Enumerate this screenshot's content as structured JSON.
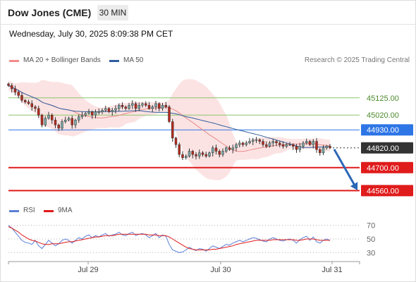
{
  "header": {
    "title": "Dow Jones (CME)",
    "timeframe": "30 MIN",
    "datetime": "Wednesday, July 30, 2025 8:09:38 PM CET"
  },
  "legend": {
    "ma20_label": "MA 20 + Bollinger Bands",
    "ma50_label": "MA 50",
    "copyright": "Research © 2025 Trading Central"
  },
  "rsi_legend": {
    "rsi_label": "RSI",
    "ma9_label": "9MA"
  },
  "colors": {
    "bollinger": "#f4a6a6",
    "ma50": "#2f5d9e",
    "resistance": "#8cc66c",
    "pivot": "#2e75e6",
    "support": "#e01b1b",
    "last_price": "#333333",
    "candle_up": "#79a9a6",
    "candle_down": "#b62b1e"
  },
  "chart_data": [
    {
      "type": "candlestick",
      "title": "Dow Jones (CME) 30 MIN",
      "xticks": [
        "Jul 29",
        "Jul 30",
        "Jul 31"
      ],
      "ylim": [
        44510,
        45240
      ],
      "price_labels": [
        {
          "label": "45125.00",
          "value": 45125,
          "kind": "resistance"
        },
        {
          "label": "45020.00",
          "value": 45020,
          "kind": "resistance"
        },
        {
          "label": "44930.00",
          "value": 44930,
          "kind": "pivot"
        },
        {
          "label": "44820.00",
          "value": 44820,
          "kind": "last"
        },
        {
          "label": "44700.00",
          "value": 44700,
          "kind": "support"
        },
        {
          "label": "44560.00",
          "value": 44560,
          "kind": "support"
        }
      ],
      "closes": [
        45200,
        45180,
        45160,
        45140,
        45110,
        45100,
        45090,
        45070,
        45060,
        45020,
        44960,
        45000,
        45020,
        44990,
        44960,
        44940,
        44980,
        44990,
        45000,
        44960,
        44990,
        45010,
        45020,
        45030,
        45040,
        45020,
        45040,
        45040,
        45050,
        45060,
        45040,
        45050,
        45060,
        45080,
        45070,
        45060,
        45080,
        45090,
        45060,
        45080,
        45090,
        45080,
        45060,
        45070,
        45090,
        45060,
        45080,
        45070,
        44980,
        44880,
        44840,
        44780,
        44760,
        44770,
        44800,
        44780,
        44770,
        44790,
        44780,
        44770,
        44790,
        44820,
        44800,
        44780,
        44800,
        44820,
        44810,
        44820,
        44840,
        44850,
        44840,
        44850,
        44860,
        44870,
        44870,
        44860,
        44840,
        44830,
        44850,
        44860,
        44850,
        44840,
        44830,
        44840,
        44840,
        44830,
        44810,
        44830,
        44850,
        44860,
        44840,
        44860,
        44810,
        44790,
        44820,
        44830,
        44820
      ],
      "forecast": {
        "from": 44820,
        "to": 44560
      },
      "series": [
        {
          "name": "MA 20 + Bollinger Bands"
        },
        {
          "name": "MA 50"
        }
      ]
    },
    {
      "type": "line",
      "ylim": [
        20,
        80
      ],
      "yticks": [
        "70",
        "50",
        "30"
      ],
      "series": [
        {
          "name": "RSI",
          "values": [
            70,
            66,
            60,
            54,
            48,
            45,
            44,
            42,
            48,
            40,
            36,
            42,
            48,
            44,
            40,
            43,
            48,
            50,
            48,
            44,
            48,
            52,
            50,
            54,
            56,
            52,
            55,
            53,
            56,
            58,
            54,
            56,
            57,
            60,
            56,
            55,
            58,
            60,
            55,
            57,
            58,
            56,
            52,
            55,
            58,
            52,
            56,
            54,
            42,
            34,
            32,
            30,
            31,
            34,
            38,
            35,
            33,
            36,
            35,
            32,
            36,
            40,
            38,
            36,
            39,
            42,
            41,
            44,
            46,
            48,
            46,
            48,
            50,
            52,
            51,
            49,
            47,
            46,
            50,
            52,
            50,
            48,
            47,
            49,
            50,
            48,
            44,
            49,
            52,
            54,
            48,
            53,
            46,
            44,
            48,
            50,
            48
          ]
        },
        {
          "name": "9MA",
          "values": [
            68,
            66,
            63,
            60,
            56,
            53,
            50,
            48,
            47,
            45,
            43,
            42,
            42,
            43,
            43,
            43,
            44,
            45,
            46,
            46,
            47,
            48,
            49,
            50,
            51,
            52,
            53,
            53,
            54,
            55,
            55,
            55,
            56,
            57,
            57,
            57,
            57,
            57,
            57,
            57,
            57,
            57,
            56,
            56,
            56,
            55,
            55,
            55,
            53,
            50,
            47,
            44,
            41,
            38,
            36,
            35,
            34,
            34,
            34,
            34,
            34,
            35,
            35,
            36,
            37,
            38,
            39,
            40,
            42,
            43,
            44,
            45,
            46,
            47,
            48,
            48,
            48,
            48,
            48,
            49,
            49,
            49,
            49,
            49,
            49,
            49,
            48,
            48,
            49,
            50,
            50,
            50,
            49,
            48,
            48,
            48,
            48
          ]
        }
      ]
    }
  ]
}
